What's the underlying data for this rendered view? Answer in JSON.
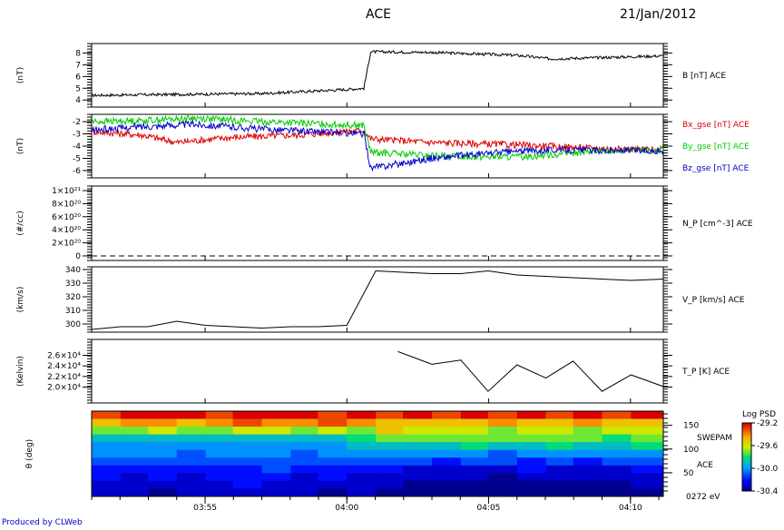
{
  "header": {
    "title": "ACE",
    "date": "21/Jan/2012"
  },
  "footer": {
    "credit": "Produced by CLWeb"
  },
  "chart_data": [
    {
      "type": "line",
      "ylabel": "(nT)",
      "ylim": [
        3.4,
        8.8
      ],
      "yticks": [
        4,
        5,
        6,
        7,
        8
      ],
      "tick_labels": [
        "4",
        "5",
        "6",
        "7",
        "8"
      ],
      "series": [
        {
          "name": "B [nT] ACE",
          "color": "#000000",
          "x": [
            3.85,
            3.95,
            4.0,
            4.01,
            4.014,
            4.05,
            4.1,
            4.12,
            4.186
          ],
          "y": [
            4.4,
            4.55,
            4.9,
            5.0,
            8.1,
            8.05,
            7.8,
            7.5,
            7.75
          ]
        }
      ]
    },
    {
      "type": "line",
      "ylabel": "(nT)",
      "ylim": [
        -6.6,
        -1.4
      ],
      "yticks": [
        -6,
        -5,
        -4,
        -3,
        -2
      ],
      "tick_labels": [
        "-6",
        "-5",
        "-4",
        "-3",
        "-2"
      ],
      "series": [
        {
          "name": "Bx_gse [nT] ACE",
          "color": "#dd0000",
          "x": [
            3.85,
            3.88,
            3.9,
            3.93,
            3.97,
            4.01,
            4.014,
            4.05,
            4.1,
            4.15,
            4.186
          ],
          "y": [
            -2.8,
            -3.1,
            -3.7,
            -3.3,
            -3.1,
            -2.7,
            -3.4,
            -3.7,
            -3.9,
            -4.2,
            -4.3
          ]
        },
        {
          "name": "By_gse [nT] ACE",
          "color": "#00cc00",
          "x": [
            3.85,
            3.88,
            3.91,
            3.95,
            4.01,
            4.014,
            4.05,
            4.1,
            4.15,
            4.186
          ],
          "y": [
            -2.0,
            -1.9,
            -1.7,
            -2.0,
            -2.3,
            -4.5,
            -4.8,
            -4.9,
            -4.4,
            -4.3
          ]
        },
        {
          "name": "Bz_gse [nT] ACE",
          "color": "#0000cc",
          "x": [
            3.85,
            3.88,
            3.91,
            3.95,
            4.01,
            4.014,
            4.05,
            4.09,
            4.12,
            4.186
          ],
          "y": [
            -2.7,
            -2.4,
            -2.2,
            -2.6,
            -3.0,
            -5.8,
            -5.0,
            -4.5,
            -4.3,
            -4.4
          ]
        }
      ]
    },
    {
      "type": "line",
      "ylabel": "(#/cc)",
      "ylim": [
        -7e+19,
        1.07e+21
      ],
      "yticks": [
        0,
        2e+20,
        4e+20,
        6e+20,
        8e+20,
        1e+21
      ],
      "tick_labels": [
        "0",
        "2×10²⁰",
        "4×10²⁰",
        "6×10²⁰",
        "8×10²⁰",
        "1×10²¹"
      ],
      "series": [
        {
          "name": "N_P [cm^-3] ACE",
          "color": "#000000",
          "dash": true,
          "x": [
            3.85,
            4.186
          ],
          "y": [
            0,
            0
          ]
        }
      ]
    },
    {
      "type": "line",
      "ylabel": "(km/s)",
      "ylim": [
        294,
        342
      ],
      "yticks": [
        300,
        310,
        320,
        330,
        340
      ],
      "tick_labels": [
        "300",
        "310",
        "320",
        "330",
        "340"
      ],
      "series": [
        {
          "name": "V_P [km/s] ACE",
          "color": "#000000",
          "x": [
            3.85,
            3.867,
            3.883,
            3.9,
            3.917,
            3.933,
            3.95,
            3.967,
            3.983,
            4.0,
            4.017,
            4.033,
            4.05,
            4.067,
            4.083,
            4.1,
            4.117,
            4.133,
            4.15,
            4.167,
            4.186
          ],
          "y": [
            296,
            298,
            298,
            302,
            299,
            298,
            297,
            298,
            298,
            299,
            339,
            338,
            337,
            337,
            339,
            336,
            335,
            334,
            333,
            332,
            333
          ]
        }
      ]
    },
    {
      "type": "line",
      "ylabel": "(Kelvin)",
      "ylim": [
        17000,
        29000
      ],
      "yticks": [
        20000,
        22000,
        24000,
        26000
      ],
      "tick_labels": [
        "2.0×10⁴",
        "2.2×10⁴",
        "2.4×10⁴",
        "2.6×10⁴"
      ],
      "series": [
        {
          "name": "T_P [K] ACE",
          "color": "#000000",
          "x": [
            4.03,
            4.05,
            4.067,
            4.083,
            4.1,
            4.117,
            4.133,
            4.15,
            4.167,
            4.186
          ],
          "y": [
            26700,
            24300,
            25100,
            19200,
            24200,
            21700,
            24900,
            19200,
            22300,
            20100
          ]
        }
      ]
    },
    {
      "type": "heatmap",
      "ylabel": "θ (deg)",
      "ylim": [
        0,
        180
      ],
      "yticks": [
        50,
        100,
        150
      ],
      "tick_labels": [
        "50",
        "100",
        "150"
      ],
      "side_labels": [
        "SWEPAM",
        "ACE",
        "0272 eV"
      ],
      "colorbar": {
        "title": "Log PSD",
        "range": [
          -30.4,
          -29.2
        ],
        "ticks": [
          "-29.2",
          "-29.6",
          "-30.0",
          "-30.4"
        ]
      },
      "x_edges": [
        3.85,
        3.867,
        3.883,
        3.9,
        3.917,
        3.933,
        3.95,
        3.967,
        3.983,
        4.0,
        4.017,
        4.033,
        4.05,
        4.067,
        4.083,
        4.1,
        4.117,
        4.133,
        4.15,
        4.167,
        4.186
      ],
      "rows_top_to_bottom": [
        [
          -29.3,
          -29.2,
          -29.2,
          -29.2,
          -29.3,
          -29.2,
          -29.2,
          -29.2,
          -29.3,
          -29.2,
          -29.3,
          -29.2,
          -29.3,
          -29.2,
          -29.3,
          -29.2,
          -29.3,
          -29.2,
          -29.3,
          -29.2
        ],
        [
          -29.5,
          -29.4,
          -29.4,
          -29.5,
          -29.4,
          -29.3,
          -29.4,
          -29.4,
          -29.3,
          -29.4,
          -29.5,
          -29.5,
          -29.5,
          -29.5,
          -29.4,
          -29.5,
          -29.5,
          -29.4,
          -29.5,
          -29.5
        ],
        [
          -29.7,
          -29.7,
          -29.6,
          -29.7,
          -29.7,
          -29.6,
          -29.6,
          -29.7,
          -29.6,
          -29.7,
          -29.5,
          -29.6,
          -29.6,
          -29.6,
          -29.7,
          -29.6,
          -29.6,
          -29.7,
          -29.6,
          -29.6
        ],
        [
          -29.9,
          -29.9,
          -29.9,
          -29.9,
          -29.9,
          -29.9,
          -29.9,
          -29.9,
          -29.9,
          -29.8,
          -29.7,
          -29.7,
          -29.7,
          -29.7,
          -29.7,
          -29.7,
          -29.7,
          -29.7,
          -29.8,
          -29.7
        ],
        [
          -30.0,
          -30.0,
          -30.0,
          -30.0,
          -30.0,
          -30.0,
          -30.0,
          -30.0,
          -30.0,
          -29.9,
          -29.9,
          -29.9,
          -29.9,
          -29.8,
          -29.9,
          -29.9,
          -29.8,
          -29.9,
          -29.9,
          -29.8
        ],
        [
          -30.0,
          -30.0,
          -30.0,
          -30.1,
          -30.0,
          -30.0,
          -30.0,
          -30.1,
          -30.0,
          -30.0,
          -30.0,
          -30.0,
          -30.0,
          -30.0,
          -30.1,
          -30.0,
          -30.0,
          -30.0,
          -30.0,
          -30.0
        ],
        [
          -30.1,
          -30.1,
          -30.1,
          -30.1,
          -30.1,
          -30.1,
          -30.1,
          -30.1,
          -30.1,
          -30.1,
          -30.1,
          -30.1,
          -30.2,
          -30.1,
          -30.1,
          -30.2,
          -30.1,
          -30.2,
          -30.1,
          -30.1
        ],
        [
          -30.2,
          -30.2,
          -30.2,
          -30.2,
          -30.2,
          -30.2,
          -30.1,
          -30.2,
          -30.2,
          -30.2,
          -30.2,
          -30.3,
          -30.3,
          -30.3,
          -30.3,
          -30.2,
          -30.3,
          -30.3,
          -30.3,
          -30.2
        ],
        [
          -30.2,
          -30.3,
          -30.2,
          -30.3,
          -30.2,
          -30.2,
          -30.2,
          -30.3,
          -30.2,
          -30.3,
          -30.3,
          -30.3,
          -30.3,
          -30.3,
          -30.4,
          -30.3,
          -30.3,
          -30.3,
          -30.3,
          -30.3
        ],
        [
          -30.3,
          -30.3,
          -30.3,
          -30.3,
          -30.3,
          -30.2,
          -30.3,
          -30.3,
          -30.3,
          -30.3,
          -30.3,
          -30.4,
          -30.4,
          -30.4,
          -30.4,
          -30.4,
          -30.4,
          -30.4,
          -30.4,
          -30.3
        ],
        [
          -30.3,
          -30.3,
          -30.4,
          -30.3,
          -30.3,
          -30.3,
          -30.3,
          -30.3,
          -30.4,
          -30.3,
          -30.4,
          -30.4,
          -30.4,
          -30.4,
          -30.4,
          -30.4,
          -30.4,
          -30.4,
          -30.4,
          -30.4
        ]
      ]
    }
  ],
  "x_axis": {
    "range": [
      3.85,
      4.186
    ],
    "ticks": [
      3.9167,
      4.0,
      4.0833,
      4.1667
    ],
    "tick_labels": [
      "03:55",
      "04:00",
      "04:05",
      "04:10"
    ]
  }
}
